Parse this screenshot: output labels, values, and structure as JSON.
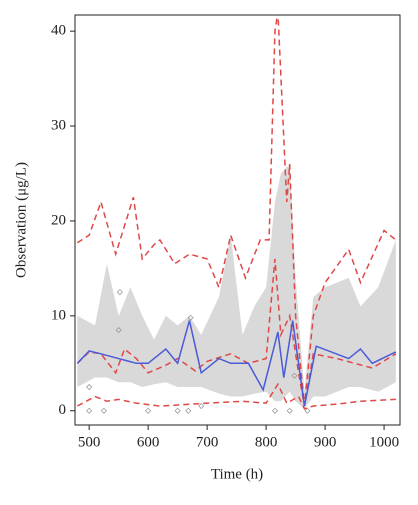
{
  "chart_data": {
    "type": "line",
    "xlabel": "Time (h)",
    "ylabel": "Observation (μg/L)",
    "xlim": [
      476,
      1027
    ],
    "ylim": [
      -1.5,
      41.7
    ],
    "xticks": [
      500,
      600,
      700,
      800,
      900,
      1000
    ],
    "yticks": [
      0,
      10,
      20,
      30,
      40
    ],
    "band": {
      "color": "#d9d9d9",
      "x": [
        480,
        510,
        530,
        550,
        570,
        590,
        610,
        630,
        650,
        670,
        690,
        720,
        740,
        760,
        780,
        800,
        815,
        825,
        840,
        850,
        865,
        880,
        900,
        940,
        960,
        990,
        1020
      ],
      "upper": [
        10,
        9,
        15.5,
        10,
        13,
        10,
        7.5,
        10,
        9,
        10,
        8,
        12,
        18.5,
        8,
        11,
        13,
        22,
        25,
        26,
        14,
        2,
        12,
        13,
        14,
        11,
        13,
        18
      ],
      "lower": [
        2.5,
        3.5,
        3.5,
        3,
        3,
        2.5,
        2.8,
        3,
        2.5,
        2.5,
        2.5,
        1.8,
        1.5,
        1.5,
        1.8,
        2,
        1,
        1,
        2,
        1,
        0.2,
        1.5,
        1.5,
        2.5,
        2.5,
        2,
        3
      ]
    },
    "points": {
      "color": "#9a9a9a",
      "x": [
        500,
        500,
        525,
        550,
        552,
        600,
        650,
        668,
        672,
        690,
        815,
        840,
        848,
        870
      ],
      "values": [
        2.5,
        0,
        0,
        8.5,
        12.5,
        0,
        0,
        0,
        9.8,
        0.5,
        0,
        0,
        3.7,
        0
      ]
    },
    "series": [
      {
        "color": "#e04848",
        "dashed": true,
        "x": [
          480,
          500,
          520,
          545,
          575,
          590,
          610,
          620,
          645,
          670,
          700,
          720,
          740,
          765,
          790,
          805,
          815,
          820,
          835,
          840,
          850,
          865,
          880,
          900,
          940,
          960,
          1000,
          1020
        ],
        "values": [
          17.7,
          18.5,
          22,
          16.5,
          22.5,
          16,
          17.5,
          18,
          15.5,
          16.5,
          16,
          13,
          18.5,
          14,
          18,
          18,
          40,
          42,
          22,
          26,
          10,
          0.5,
          10,
          13.5,
          17,
          13.5,
          19,
          18
        ]
      },
      {
        "color": "#e04848",
        "dashed": true,
        "x": [
          480,
          500,
          520,
          545,
          560,
          580,
          600,
          630,
          650,
          680,
          700,
          740,
          770,
          800,
          815,
          825,
          840,
          855,
          865,
          880,
          920,
          950,
          980,
          1020
        ],
        "values": [
          5,
          6.2,
          6,
          4,
          6.5,
          5.5,
          4,
          4.8,
          5.5,
          4.2,
          5.2,
          6,
          5,
          5.5,
          16,
          8,
          10,
          4,
          0.5,
          6,
          5.5,
          5,
          4.5,
          6
        ]
      },
      {
        "color": "#e04848",
        "dashed": true,
        "x": [
          480,
          510,
          530,
          550,
          580,
          620,
          700,
          760,
          800,
          820,
          835,
          855,
          865,
          880,
          920,
          960,
          1020
        ],
        "values": [
          0.5,
          1.5,
          1,
          1.2,
          0.8,
          0.5,
          0.8,
          1,
          0.8,
          2.8,
          0.8,
          1.5,
          0.2,
          0.5,
          0.7,
          1,
          1.2
        ]
      },
      {
        "color": "#4a5ad8",
        "dashed": false,
        "x": [
          480,
          500,
          520,
          550,
          580,
          600,
          630,
          650,
          670,
          690,
          720,
          740,
          770,
          795,
          820,
          830,
          845,
          865,
          885,
          940,
          960,
          980,
          1020
        ],
        "values": [
          5,
          6.3,
          6,
          5.5,
          5,
          5,
          6.5,
          5,
          9.5,
          4,
          5.5,
          5,
          5,
          2.2,
          8.3,
          3.5,
          9.5,
          0.5,
          6.8,
          5.5,
          6.5,
          5,
          6.2
        ]
      }
    ]
  }
}
